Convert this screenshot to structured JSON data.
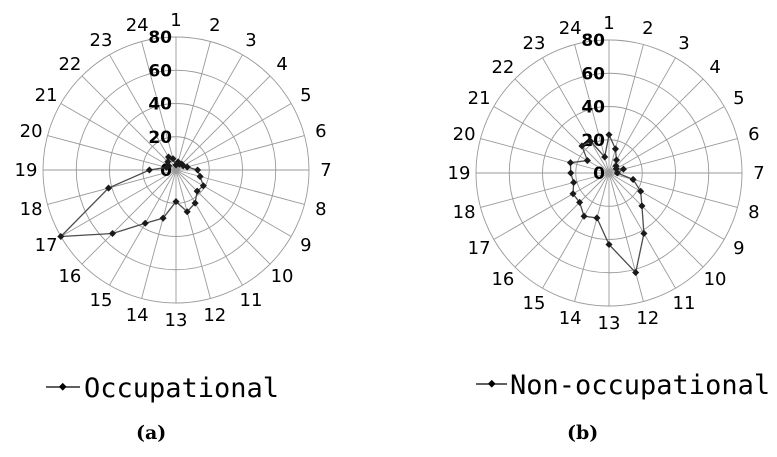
{
  "chart_data": [
    {
      "type": "radar",
      "panel_label": "(a)",
      "legend_label": "Occupational",
      "legend_position": "bottom",
      "categories": [
        "1",
        "2",
        "3",
        "4",
        "5",
        "6",
        "7",
        "8",
        "9",
        "10",
        "11",
        "12",
        "13",
        "14",
        "15",
        "16",
        "17",
        "18",
        "19",
        "20",
        "21",
        "22",
        "23",
        "24"
      ],
      "radial_ticks": [
        "0",
        "20",
        "40",
        "60",
        "80"
      ],
      "rlim": [
        0,
        80
      ],
      "grid": true,
      "series": [
        {
          "values": [
            3,
            5,
            4,
            5,
            5,
            7,
            13,
            15,
            19,
            18,
            23,
            26,
            19,
            30,
            37,
            54,
            80,
            42,
            16,
            6,
            5,
            7,
            9,
            7
          ]
        }
      ]
    },
    {
      "type": "radar",
      "panel_label": "(b)",
      "legend_label": "Non-occupational",
      "legend_position": "bottom",
      "categories": [
        "1",
        "2",
        "3",
        "4",
        "5",
        "6",
        "7",
        "8",
        "9",
        "10",
        "11",
        "12",
        "13",
        "14",
        "15",
        "16",
        "17",
        "18",
        "19",
        "20",
        "21",
        "22",
        "23",
        "24"
      ],
      "radial_ticks": [
        "0",
        "20",
        "40",
        "60",
        "80"
      ],
      "rlim": [
        0,
        80
      ],
      "grid": true,
      "series": [
        {
          "values": [
            23,
            15,
            9,
            6,
            5,
            9,
            5,
            15,
            22,
            28,
            42,
            62,
            43,
            28,
            30,
            25,
            25,
            22,
            23,
            24,
            15,
            23,
            22,
            10
          ]
        }
      ]
    }
  ]
}
